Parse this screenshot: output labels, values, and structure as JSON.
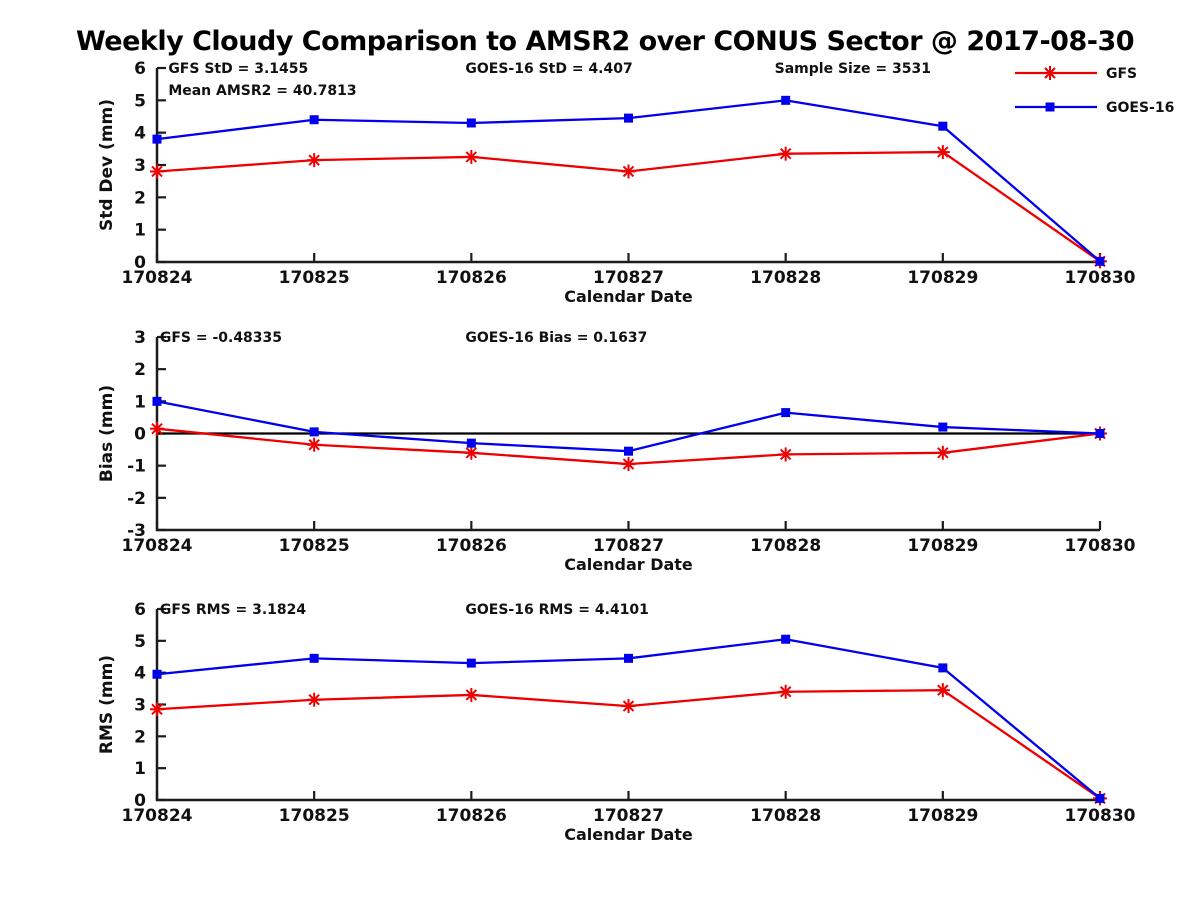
{
  "title": "Weekly Cloudy Comparison to AMSR2 over CONUS Sector @ 2017-08-30",
  "colors": {
    "gfs_red": "#ee0000",
    "goes_blue": "#0000ee",
    "axis": "#1c1c1c",
    "zero_line": "#000000",
    "text": "#111111",
    "background": "#ffffff"
  },
  "legend": {
    "position": "top-right",
    "entries": [
      {
        "label": "GFS",
        "color": "#ee0000",
        "marker": "asterisk"
      },
      {
        "label": "GOES-16",
        "color": "#0000ee",
        "marker": "square"
      }
    ]
  },
  "chart_data": [
    {
      "type": "line",
      "name": "std-dev",
      "ylabel": "Std Dev (mm)",
      "xlabel": "Calendar Date",
      "ylim": [
        0,
        6
      ],
      "yticks": [
        0,
        1,
        2,
        3,
        4,
        5,
        6
      ],
      "grid": false,
      "zero_line": false,
      "categories": [
        "170824",
        "170825",
        "170826",
        "170827",
        "170828",
        "170829",
        "170830"
      ],
      "annotations": [
        {
          "text": "GFS StD = 3.1455",
          "fx": 0.012,
          "line": 0
        },
        {
          "text": "Mean AMSR2 = 40.7813",
          "fx": 0.012,
          "line": 1
        },
        {
          "text": "GOES-16 StD = 4.407",
          "fx": 0.327,
          "line": 0
        },
        {
          "text": "Sample Size = 3531",
          "fx": 0.655,
          "line": 0
        }
      ],
      "series": [
        {
          "name": "GFS",
          "color": "#ee0000",
          "marker": "asterisk",
          "values": [
            2.8,
            3.15,
            3.25,
            2.8,
            3.35,
            3.4,
            0.02
          ]
        },
        {
          "name": "GOES-16",
          "color": "#0000ee",
          "marker": "square",
          "values": [
            3.8,
            4.4,
            4.3,
            4.45,
            5.0,
            4.2,
            0.02
          ]
        }
      ]
    },
    {
      "type": "line",
      "name": "bias",
      "ylabel": "Bias (mm)",
      "xlabel": "Calendar Date",
      "ylim": [
        -3,
        3
      ],
      "yticks": [
        -3,
        -2,
        -1,
        0,
        1,
        2,
        3
      ],
      "grid": false,
      "zero_line": true,
      "categories": [
        "170824",
        "170825",
        "170826",
        "170827",
        "170828",
        "170829",
        "170830"
      ],
      "annotations": [
        {
          "text": "GFS = -0.48335",
          "fx": 0.003,
          "line": 0
        },
        {
          "text": "GOES-16 Bias  = 0.1637",
          "fx": 0.327,
          "line": 0
        }
      ],
      "series": [
        {
          "name": "GFS",
          "color": "#ee0000",
          "marker": "asterisk",
          "values": [
            0.15,
            -0.35,
            -0.6,
            -0.95,
            -0.65,
            -0.6,
            0.0
          ]
        },
        {
          "name": "GOES-16",
          "color": "#0000ee",
          "marker": "square",
          "values": [
            1.0,
            0.05,
            -0.3,
            -0.55,
            0.65,
            0.2,
            0.0
          ]
        }
      ]
    },
    {
      "type": "line",
      "name": "rms",
      "ylabel": "RMS (mm)",
      "xlabel": "Calendar Date",
      "ylim": [
        0,
        6
      ],
      "yticks": [
        0,
        1,
        2,
        3,
        4,
        5,
        6
      ],
      "grid": false,
      "zero_line": false,
      "categories": [
        "170824",
        "170825",
        "170826",
        "170827",
        "170828",
        "170829",
        "170830"
      ],
      "annotations": [
        {
          "text": "GFS RMS = 3.1824",
          "fx": 0.003,
          "line": 0
        },
        {
          "text": "GOES-16 RMS = 4.4101",
          "fx": 0.327,
          "line": 0
        }
      ],
      "series": [
        {
          "name": "GFS",
          "color": "#ee0000",
          "marker": "asterisk",
          "values": [
            2.85,
            3.15,
            3.3,
            2.95,
            3.4,
            3.45,
            0.05
          ]
        },
        {
          "name": "GOES-16",
          "color": "#0000ee",
          "marker": "square",
          "values": [
            3.95,
            4.45,
            4.3,
            4.45,
            5.05,
            4.15,
            0.05
          ]
        }
      ]
    }
  ]
}
